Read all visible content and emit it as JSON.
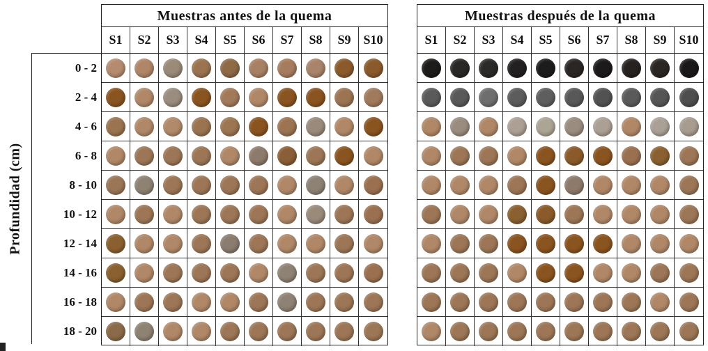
{
  "panels": [
    {
      "title": "Muestras antes de la quema",
      "samples": [
        "S1",
        "S2",
        "S3",
        "S4",
        "S5",
        "S6",
        "S7",
        "S8",
        "S9",
        "S10"
      ],
      "colors": [
        [
          "#b48b6e",
          "#b08568",
          "#9a8a78",
          "#9a7450",
          "#8e6a46",
          "#a88064",
          "#a67c5e",
          "#a9836a",
          "#8a5a2c",
          "#8a5a2c"
        ],
        [
          "#8a5420",
          "#b08868",
          "#9a8c7e",
          "#8a5420",
          "#a27a5a",
          "#b08868",
          "#8a5420",
          "#8a5420",
          "#9c7452",
          "#a07a5c"
        ],
        [
          "#9a7450",
          "#b08868",
          "#b08a6a",
          "#9a7450",
          "#9c7652",
          "#8a5420",
          "#9c7452",
          "#9a8a7a",
          "#b08868",
          "#8a5420"
        ],
        [
          "#b08868",
          "#9c7656",
          "#9c7656",
          "#9c7656",
          "#b08868",
          "#8e7a6a",
          "#8a5e36",
          "#9c7656",
          "#8a5420",
          "#b08868"
        ],
        [
          "#9a7656",
          "#8e8272",
          "#9c7656",
          "#9c7656",
          "#9c7656",
          "#9c7656",
          "#b08868",
          "#8e8274",
          "#b08868",
          "#9a7050"
        ],
        [
          "#b08868",
          "#9c7656",
          "#b08868",
          "#9c7656",
          "#9c7656",
          "#9c7656",
          "#b08868",
          "#9a8a7a",
          "#9c7656",
          "#9a7050"
        ],
        [
          "#8a6030",
          "#b08868",
          "#b08868",
          "#9c7656",
          "#8a7c6e",
          "#9c7656",
          "#b08868",
          "#b08868",
          "#9c7656",
          "#b08868"
        ],
        [
          "#8a6030",
          "#b08868",
          "#9c7656",
          "#9c7656",
          "#9c7656",
          "#b08868",
          "#8e8274",
          "#9c7656",
          "#9c7656",
          "#9a7050"
        ],
        [
          "#b08868",
          "#9c7656",
          "#9c7656",
          "#b08868",
          "#b08868",
          "#9c7656",
          "#8e8274",
          "#9c7656",
          "#9c7656",
          "#9c7656"
        ],
        [
          "#8a6a48",
          "#8e8272",
          "#b08868",
          "#b08868",
          "#9c7656",
          "#9c7656",
          "#9c7656",
          "#9c7656",
          "#9c7656",
          "#9c7656"
        ]
      ]
    },
    {
      "title": "Muestras después de la quema",
      "samples": [
        "S1",
        "S2",
        "S3",
        "S4",
        "S5",
        "S6",
        "S7",
        "S8",
        "S9",
        "S10"
      ],
      "colors": [
        [
          "#1e1c1a",
          "#2a2826",
          "#2c2a28",
          "#222020",
          "#1c1c1c",
          "#2a2624",
          "#1c1a1a",
          "#262220",
          "#2a2624",
          "#1a1818"
        ],
        [
          "#5a5a5a",
          "#595959",
          "#6e6e6e",
          "#5c5c5c",
          "#5e5e5e",
          "#585858",
          "#525252",
          "#5a5a5a",
          "#565656",
          "#4e4e4e"
        ],
        [
          "#b08868",
          "#9a8c7e",
          "#b08868",
          "#aca094",
          "#aca494",
          "#9a8c7e",
          "#aca094",
          "#b08868",
          "#aaa096",
          "#a89c90"
        ],
        [
          "#b08868",
          "#9c7656",
          "#9c7656",
          "#b08868",
          "#8a5420",
          "#8a5a2a",
          "#8a5420",
          "#9a7050",
          "#8a6030",
          "#9c7656"
        ],
        [
          "#b08868",
          "#b08868",
          "#b08868",
          "#9c7656",
          "#8a5420",
          "#8e7a6a",
          "#b08868",
          "#b08868",
          "#b08868",
          "#9c7656"
        ],
        [
          "#9c7656",
          "#b08868",
          "#b08868",
          "#8a6030",
          "#8a5a2a",
          "#9c7656",
          "#b08868",
          "#b08868",
          "#b08868",
          "#9c7656"
        ],
        [
          "#b08868",
          "#9c7656",
          "#9c7656",
          "#8a5420",
          "#8a5420",
          "#8a5420",
          "#8a5420",
          "#b08868",
          "#b08868",
          "#b08868"
        ],
        [
          "#9c7656",
          "#9c7656",
          "#9c7656",
          "#b08868",
          "#8a5420",
          "#8a5420",
          "#b08868",
          "#b08868",
          "#9c7656",
          "#9c7656"
        ],
        [
          "#9c7656",
          "#9c7656",
          "#9c7656",
          "#9c7656",
          "#9c7656",
          "#9c7656",
          "#9c7656",
          "#9c7656",
          "#b08868",
          "#9c7656"
        ],
        [
          "#b08868",
          "#9c7656",
          "#9c7656",
          "#9c7656",
          "#9c7656",
          "#9c7656",
          "#9c7656",
          "#9c7656",
          "#9c7656",
          "#9c7656"
        ]
      ]
    }
  ],
  "depths": [
    "0 - 2",
    "2 - 4",
    "4 - 6",
    "6 - 8",
    "8 - 10",
    "10 - 12",
    "12 - 14",
    "14 - 16",
    "16 - 18",
    "18 - 20"
  ],
  "yaxis_label": "Profundidad (cm)"
}
